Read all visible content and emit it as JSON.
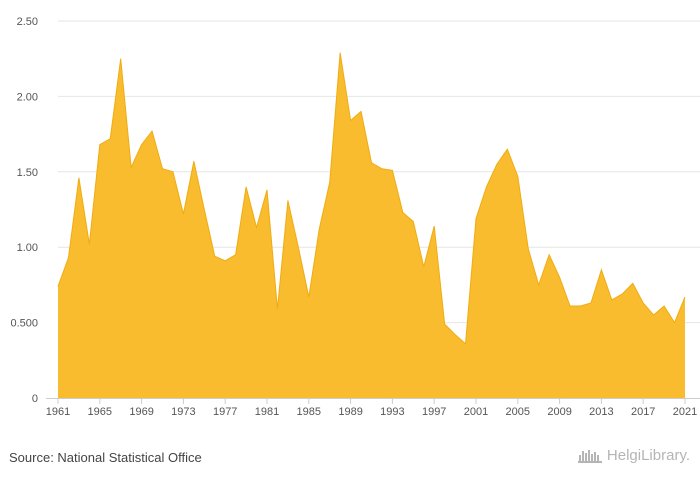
{
  "chart_data": {
    "type": "area",
    "title": "",
    "xlabel": "",
    "ylabel": "",
    "x": [
      1961,
      1962,
      1963,
      1964,
      1965,
      1966,
      1967,
      1968,
      1969,
      1970,
      1971,
      1972,
      1973,
      1974,
      1975,
      1976,
      1977,
      1978,
      1979,
      1980,
      1981,
      1982,
      1983,
      1984,
      1985,
      1986,
      1987,
      1988,
      1989,
      1990,
      1991,
      1992,
      1993,
      1994,
      1995,
      1996,
      1997,
      1998,
      1999,
      2000,
      2001,
      2002,
      2003,
      2004,
      2005,
      2006,
      2007,
      2008,
      2009,
      2010,
      2011,
      2012,
      2013,
      2014,
      2015,
      2016,
      2017,
      2018,
      2019,
      2020,
      2021
    ],
    "values": [
      0.74,
      0.93,
      1.46,
      1.02,
      1.68,
      1.72,
      2.25,
      1.53,
      1.68,
      1.77,
      1.52,
      1.5,
      1.22,
      1.57,
      1.25,
      0.94,
      0.91,
      0.95,
      1.4,
      1.13,
      1.38,
      0.59,
      1.31,
      1.0,
      0.67,
      1.12,
      1.43,
      2.29,
      1.84,
      1.9,
      1.56,
      1.52,
      1.51,
      1.23,
      1.17,
      0.87,
      1.14,
      0.49,
      0.42,
      0.36,
      1.19,
      1.4,
      1.55,
      1.65,
      1.47,
      0.99,
      0.75,
      0.95,
      0.8,
      0.61,
      0.61,
      0.63,
      0.85,
      0.65,
      0.69,
      0.76,
      0.63,
      0.55,
      0.61,
      0.5,
      0.67
    ],
    "ylim": [
      0,
      2.5
    ],
    "yticks": [
      0,
      0.5,
      1.0,
      1.5,
      2.0,
      2.5
    ],
    "ytick_labels": [
      "0",
      "0.500",
      "1.00",
      "1.50",
      "2.00",
      "2.50"
    ],
    "xticks": [
      1961,
      1965,
      1969,
      1973,
      1977,
      1981,
      1985,
      1989,
      1993,
      1997,
      2001,
      2005,
      2009,
      2013,
      2017,
      2021
    ],
    "xtick_labels": [
      "1961",
      "1965",
      "1969",
      "1973",
      "1977",
      "1981",
      "1985",
      "1989",
      "1993",
      "1997",
      "2001",
      "2005",
      "2009",
      "2013",
      "2017",
      "2021"
    ],
    "grid": true,
    "colors": {
      "fill": "#f9bc2f",
      "stroke": "#f0ac10",
      "grid": "#e6e6e6",
      "axis": "#cccccc"
    }
  },
  "footer": {
    "source": "Source: National Statistical Office",
    "brand": "HelgiLibrary."
  }
}
